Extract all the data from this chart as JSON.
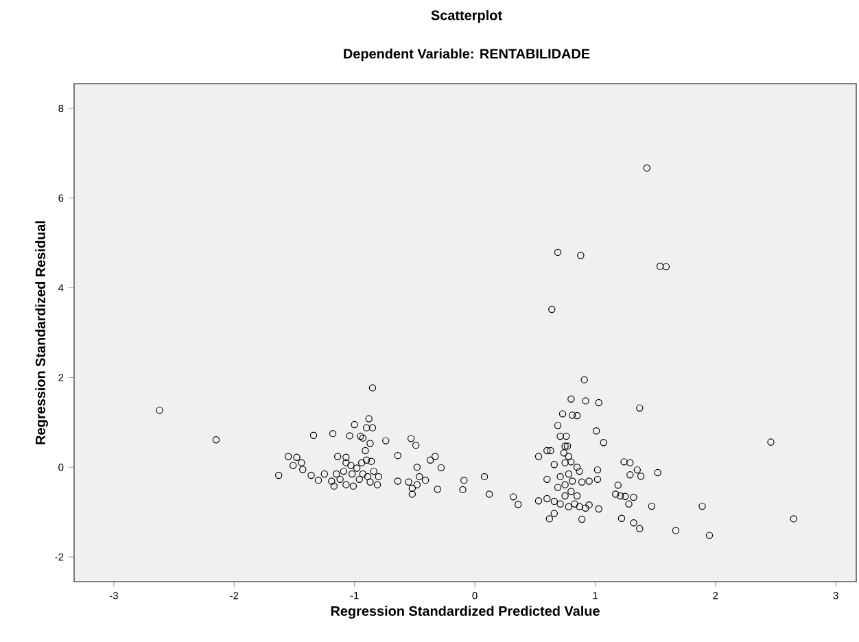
{
  "chart_data": {
    "type": "scatter",
    "title": "Scatterplot",
    "subtitle": "Dependent Variable: RENTABILIDADE",
    "xlabel": "Regression Standardized Predicted Value",
    "ylabel": "Regression Standardized Residual",
    "color": "#000000",
    "marker": "circle",
    "grid": false,
    "xlim": [
      -3.33,
      3.17
    ],
    "ylim": [
      -2.55,
      8.55
    ],
    "xticks": [
      -3,
      -2,
      -1,
      0,
      1,
      2,
      3
    ],
    "yticks": [
      -2,
      0,
      2,
      4,
      6,
      8
    ],
    "x": [
      -2.62,
      -2.15,
      1.43,
      0.69,
      0.88,
      1.54,
      1.59,
      0.64,
      0.91,
      -0.85,
      0.8,
      0.92,
      1.03,
      1.37,
      0.73,
      0.81,
      0.85,
      2.46,
      2.65,
      1.95,
      1.67,
      1.89,
      1.47,
      1.37,
      1.32,
      1.22,
      0.69,
      1.01,
      1.07,
      0.71,
      0.76,
      0.6,
      0.63,
      0.53,
      0.77,
      1.24,
      1.29,
      1.35,
      1.38,
      1.29,
      1.52,
      1.02,
      1.02,
      1.19,
      1.17,
      1.21,
      1.25,
      1.32,
      1.28,
      1.03,
      0.95,
      0.89,
      0.62,
      0.66,
      0.53,
      0.6,
      0.66,
      0.6,
      0.66,
      0.75,
      0.8,
      0.85,
      0.87,
      0.78,
      0.71,
      0.81,
      0.89,
      0.95,
      0.75,
      0.69,
      0.8,
      0.85,
      0.75,
      0.71,
      0.83,
      0.87,
      0.78,
      0.92,
      0.74,
      0.75,
      0.78,
      -0.09,
      -0.1,
      0.08,
      0.12,
      0.32,
      0.36,
      -0.28,
      -0.31,
      -0.33,
      -0.37,
      -0.64,
      -0.64,
      -0.53,
      -0.49,
      -0.48,
      -0.52,
      -0.55,
      -0.48,
      -0.46,
      -0.41,
      -0.52,
      -0.74,
      -1.0,
      -0.88,
      -0.9,
      -0.85,
      -1.04,
      -0.95,
      -0.93,
      -0.87,
      -0.91,
      -1.18,
      -1.34,
      -1.14,
      -1.07,
      -0.9,
      -0.86,
      -1.55,
      -1.48,
      -1.44,
      -1.51,
      -1.43,
      -1.36,
      -1.63,
      -1.3,
      -1.19,
      -1.25,
      -1.15,
      -1.09,
      -1.02,
      -0.98,
      -0.93,
      -0.89,
      -0.84,
      -0.8,
      -1.12,
      -1.07,
      -1.01,
      -0.96,
      -0.87,
      -0.81,
      -1.17,
      -1.03,
      -1.07,
      -0.94
    ],
    "values": [
      1.27,
      0.61,
      6.67,
      4.79,
      4.72,
      4.48,
      4.47,
      3.52,
      1.95,
      1.77,
      1.52,
      1.48,
      1.44,
      1.32,
      1.19,
      1.16,
      1.15,
      0.56,
      -1.15,
      -1.52,
      -1.41,
      -0.87,
      -0.87,
      -1.37,
      -1.24,
      -1.14,
      0.93,
      0.81,
      0.55,
      0.69,
      0.69,
      0.37,
      0.37,
      0.24,
      0.47,
      0.12,
      0.1,
      -0.06,
      -0.2,
      -0.17,
      -0.12,
      -0.06,
      -0.27,
      -0.4,
      -0.6,
      -0.64,
      -0.65,
      -0.67,
      -0.82,
      -0.93,
      -0.84,
      -1.16,
      -1.15,
      -1.03,
      -0.75,
      -0.7,
      -0.76,
      -0.27,
      0.06,
      0.1,
      0.12,
      0.0,
      -0.09,
      -0.15,
      -0.21,
      -0.31,
      -0.33,
      -0.31,
      -0.39,
      -0.45,
      -0.54,
      -0.64,
      -0.64,
      -0.82,
      -0.82,
      -0.88,
      -0.88,
      -0.91,
      0.32,
      0.47,
      0.24,
      -0.29,
      -0.5,
      -0.21,
      -0.6,
      -0.66,
      -0.83,
      -0.01,
      -0.49,
      0.24,
      0.16,
      0.26,
      -0.31,
      0.64,
      0.49,
      0.0,
      -0.6,
      -0.33,
      -0.39,
      -0.21,
      -0.29,
      -0.47,
      0.59,
      0.95,
      1.08,
      0.88,
      0.88,
      0.7,
      0.69,
      0.65,
      0.53,
      0.37,
      0.75,
      0.71,
      0.24,
      0.22,
      0.16,
      0.13,
      0.24,
      0.22,
      0.1,
      0.04,
      -0.05,
      -0.18,
      -0.18,
      -0.29,
      -0.31,
      -0.15,
      -0.15,
      -0.09,
      -0.15,
      -0.02,
      -0.15,
      -0.21,
      -0.09,
      -0.21,
      -0.27,
      -0.39,
      -0.42,
      -0.27,
      -0.33,
      -0.39,
      -0.42,
      0.04,
      0.1,
      0.1
    ]
  }
}
